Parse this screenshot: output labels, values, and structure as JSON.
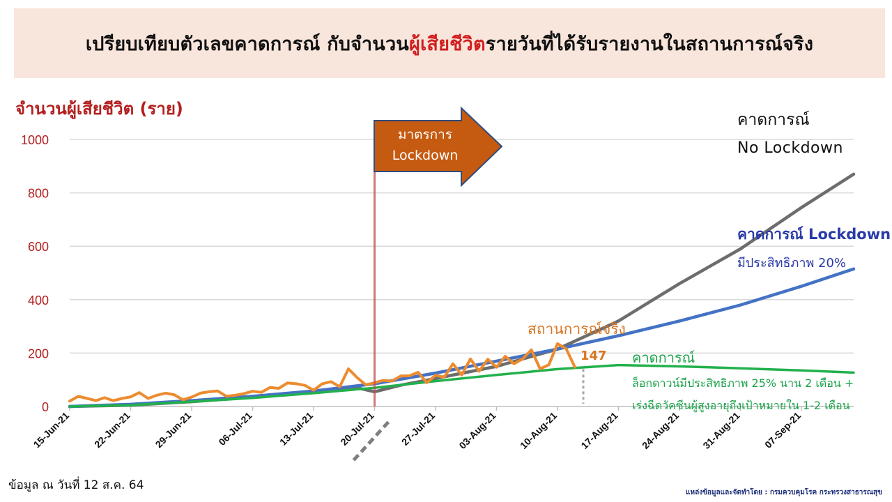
{
  "header": {
    "title_part1": "เปรียบเทียบตัวเลขคาดการณ์ กับจำนวน",
    "title_highlight": "ผู้เสียชีวิต",
    "title_part2": "รายวันที่ได้รับรายงานในสถานการณ์จริง"
  },
  "colors": {
    "axis_text": "#b31f1f",
    "nolockdown": "#6d6d6d",
    "lockdown": "#4472c4",
    "actual": "#ed8b2f",
    "vaccine": "#22b14c",
    "arrow_fill": "#c55a11",
    "arrow_stroke": "#2f4b7c",
    "lockdown_line": "#c0504d"
  },
  "chart_data": {
    "type": "line",
    "ylabel": "จำนวนผู้เสียชีวิต (ราย)",
    "ylim": [
      0,
      1000
    ],
    "yticks": [
      0,
      200,
      400,
      600,
      800,
      1000
    ],
    "grid": true,
    "xlim": [
      "2021-06-15",
      "2021-09-13"
    ],
    "xticks": [
      "15-Jun-21",
      "22-Jun-21",
      "29-Jun-21",
      "06-Jul-21",
      "13-Jul-21",
      "20-Jul-21",
      "27-Jul-21",
      "03-Aug-21",
      "10-Aug-21",
      "17-Aug-21",
      "24-Aug-21",
      "31-Aug-21",
      "07-Sep-21"
    ],
    "lockdown_date": "2021-07-20",
    "series": [
      {
        "key": "nolockdown",
        "x": [
          "2021-06-15",
          "2021-06-22",
          "2021-06-29",
          "2021-07-06",
          "2021-07-13",
          "2021-07-18",
          "2021-07-20",
          "2021-07-23",
          "2021-07-27",
          "2021-08-03",
          "2021-08-10",
          "2021-08-17",
          "2021-08-24",
          "2021-08-31",
          "2021-09-07",
          "2021-09-13"
        ],
        "values": [
          0,
          5,
          18,
          35,
          55,
          70,
          55,
          80,
          105,
          150,
          215,
          320,
          460,
          590,
          745,
          870
        ]
      },
      {
        "key": "lockdown",
        "x": [
          "2021-06-15",
          "2021-06-22",
          "2021-06-29",
          "2021-07-06",
          "2021-07-13",
          "2021-07-20",
          "2021-07-27",
          "2021-08-03",
          "2021-08-10",
          "2021-08-17",
          "2021-08-24",
          "2021-08-31",
          "2021-09-07",
          "2021-09-13"
        ],
        "values": [
          0,
          8,
          22,
          38,
          58,
          85,
          125,
          170,
          215,
          265,
          320,
          380,
          450,
          515
        ]
      },
      {
        "key": "vaccine",
        "x": [
          "2021-06-15",
          "2021-06-22",
          "2021-06-29",
          "2021-07-06",
          "2021-07-13",
          "2021-07-20",
          "2021-07-27",
          "2021-08-03",
          "2021-08-10",
          "2021-08-17",
          "2021-08-24",
          "2021-08-31",
          "2021-09-07",
          "2021-09-13"
        ],
        "values": [
          0,
          5,
          18,
          32,
          50,
          70,
          95,
          118,
          140,
          155,
          150,
          143,
          135,
          127
        ]
      },
      {
        "key": "actual",
        "x": [
          "2021-06-15",
          "2021-06-16",
          "2021-06-17",
          "2021-06-18",
          "2021-06-19",
          "2021-06-20",
          "2021-06-21",
          "2021-06-22",
          "2021-06-23",
          "2021-06-24",
          "2021-06-25",
          "2021-06-26",
          "2021-06-27",
          "2021-06-28",
          "2021-06-29",
          "2021-06-30",
          "2021-07-01",
          "2021-07-02",
          "2021-07-03",
          "2021-07-04",
          "2021-07-05",
          "2021-07-06",
          "2021-07-07",
          "2021-07-08",
          "2021-07-09",
          "2021-07-10",
          "2021-07-11",
          "2021-07-12",
          "2021-07-13",
          "2021-07-14",
          "2021-07-15",
          "2021-07-16",
          "2021-07-17",
          "2021-07-18",
          "2021-07-19",
          "2021-07-20",
          "2021-07-21",
          "2021-07-22",
          "2021-07-23",
          "2021-07-24",
          "2021-07-25",
          "2021-07-26",
          "2021-07-27",
          "2021-07-28",
          "2021-07-29",
          "2021-07-30",
          "2021-07-31",
          "2021-08-01",
          "2021-08-02",
          "2021-08-03",
          "2021-08-04",
          "2021-08-05",
          "2021-08-06",
          "2021-08-07",
          "2021-08-08",
          "2021-08-09",
          "2021-08-10",
          "2021-08-11",
          "2021-08-12"
        ],
        "values": [
          20,
          38,
          30,
          22,
          33,
          22,
          30,
          36,
          52,
          30,
          42,
          50,
          44,
          25,
          35,
          50,
          55,
          58,
          38,
          42,
          48,
          57,
          53,
          71,
          68,
          88,
          85,
          79,
          61,
          85,
          93,
          74,
          141,
          108,
          81,
          89,
          98,
          95,
          114,
          115,
          128,
          89,
          117,
          110,
          160,
          118,
          178,
          132,
          177,
          147,
          188,
          160,
          178,
          212,
          141,
          156,
          235,
          216,
          147
        ]
      }
    ],
    "annotations": {
      "lockdown_arrow_line1": "มาตรการ",
      "lockdown_arrow_line2": "Lockdown",
      "nolockdown_line1": "คาดการณ์",
      "nolockdown_line2": "No Lockdown",
      "lockdown_line1": "คาดการณ์ Lockdown",
      "lockdown_line2": "มีประสิทธิภาพ 20%",
      "actual": "สถานการณ์จริง",
      "last_value": "147",
      "vaccine_line1": "คาดการณ์",
      "vaccine_line2": "ล็อกดาวน์มีประสิทธิภาพ 25% นาน 2 เดือน +",
      "vaccine_line3": "เร่งฉีดวัคซีนผู้สูงอายุถึงเป้าหมายใน 1-2 เดือน"
    }
  },
  "footer": {
    "data_as_of": "ข้อมูล ณ วันที่ 12 ส.ค. 64",
    "source": "แหล่งข้อมูลและจัดทำโดย : กรมควบคุมโรค กระทรวงสาธารณสุข"
  }
}
